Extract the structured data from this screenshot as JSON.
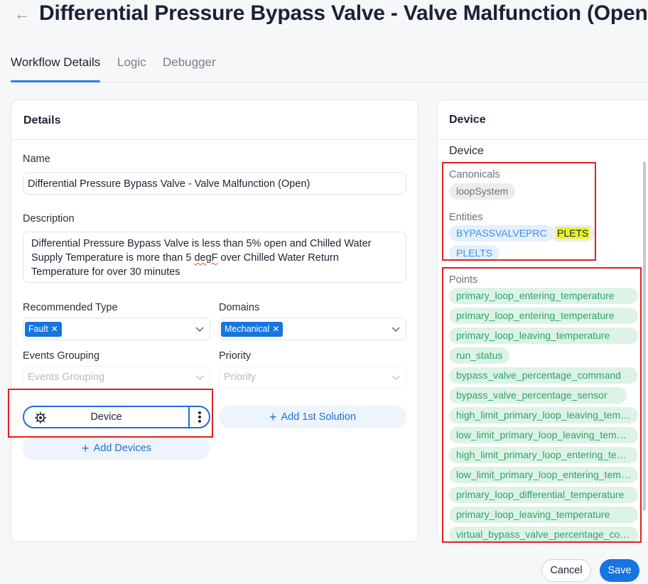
{
  "header": {
    "back_icon": "arrow-left-icon",
    "title": "Differential Pressure Bypass Valve - Valve Malfunction (Open)"
  },
  "tabs": [
    {
      "label": "Workflow Details",
      "active": true
    },
    {
      "label": "Logic",
      "active": false
    },
    {
      "label": "Debugger",
      "active": false
    }
  ],
  "details": {
    "title": "Details",
    "name_label": "Name",
    "name_value": "Differential Pressure Bypass Valve - Valve Malfunction (Open)",
    "description_label": "Description",
    "description_parts": {
      "before": "Differential Pressure Bypass Valve is less than 5% open and Chilled Water Supply Temperature is more than 5 ",
      "flagged": "degF",
      "after": " over Chilled Water Return Temperature for over 30 minutes"
    },
    "recommended_type_label": "Recommended Type",
    "recommended_type_tag": "Fault",
    "domains_label": "Domains",
    "domains_tag": "Mechanical",
    "events_grouping_label": "Events Grouping",
    "events_grouping_placeholder": "Events Grouping",
    "priority_label": "Priority",
    "priority_placeholder": "Priority",
    "device_pill_label": "Device",
    "add_solution_label": "Add 1st Solution",
    "add_devices_label": "Add Devices",
    "tag_remove_glyph": "✕",
    "plus_glyph": "+"
  },
  "device_panel": {
    "title": "Device",
    "section_title": "Device",
    "canonicals_label": "Canonicals",
    "canonicals": [
      "loopSystem"
    ],
    "entities_label": "Entities",
    "entities": [
      {
        "label": "BYPASSVALVEPRC",
        "style": "blue"
      },
      {
        "label": "PLETS",
        "style": "highlight"
      },
      {
        "label": "PLELTS",
        "style": "blue"
      }
    ],
    "points_label": "Points",
    "points": [
      "primary_loop_entering_temperature",
      "primary_loop_entering_temperature",
      "primary_loop_leaving_temperature",
      "run_status",
      "bypass_valve_percentage_command",
      "bypass_valve_percentage_sensor",
      "high_limit_primary_loop_leaving_temperature",
      "low_limit_primary_loop_leaving_temperature",
      "high_limit_primary_loop_entering_temperature",
      "low_limit_primary_loop_entering_temperature",
      "primary_loop_differential_temperature",
      "primary_loop_leaving_temperature",
      "virtual_bypass_valve_percentage_command"
    ]
  },
  "footer": {
    "cancel_label": "Cancel",
    "save_label": "Save"
  },
  "colors": {
    "accent": "#1675e0",
    "annotation_red": "#e02020",
    "point_chip_bg": "#dcf3e6",
    "point_chip_text": "#2ea36a",
    "entity_chip_bg": "#e3f0fd",
    "highlight": "#e6f52a"
  }
}
